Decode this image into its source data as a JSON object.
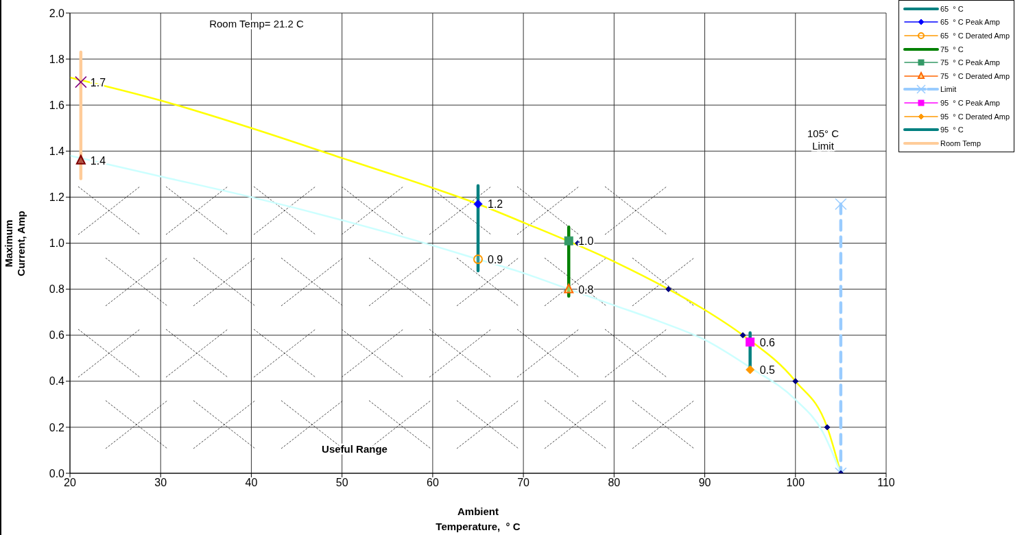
{
  "chart_data": {
    "type": "line",
    "xlabel": "Ambient Temperature,  ° C",
    "ylabel": "Maximum Current, Amp",
    "xlim": [
      20,
      110
    ],
    "xticks": [
      20,
      30,
      40,
      50,
      60,
      70,
      80,
      90,
      100,
      110
    ],
    "ylim": [
      0,
      2
    ],
    "yticks": [
      {
        "value": 0,
        "label": "0.0"
      },
      0.2,
      0.4,
      0.6,
      0.8,
      {
        "value": 1,
        "label": "1.0"
      },
      1.2,
      1.4,
      1.6,
      1.8,
      {
        "value": 2,
        "label": "2.0"
      }
    ],
    "grid": true,
    "legend": "top right",
    "annotations": [
      "Room Temp= 21.2 C",
      "105° C\nLimit",
      "Useful Range"
    ],
    "series": [
      {
        "color": "#ffff00",
        "marker": "none",
        "x": [
          20,
          30,
          40,
          50,
          60,
          65,
          70,
          80,
          86,
          90,
          94.2,
          100,
          103.5,
          105
        ],
        "values": [
          1.72,
          1.62,
          1.5,
          1.37,
          1.24,
          1.17,
          1.09,
          0.92,
          0.8,
          0.71,
          0.6,
          0.4,
          0.2,
          0
        ]
      },
      {
        "color": "#ccffff",
        "marker": "none",
        "x": [
          20,
          30,
          40,
          50,
          60,
          65,
          70,
          75,
          80,
          85,
          90,
          95,
          100,
          103,
          105
        ],
        "values": [
          1.38,
          1.29,
          1.2,
          1.1,
          0.99,
          0.93,
          0.87,
          0.8,
          0.73,
          0.66,
          0.58,
          0.46,
          0.32,
          0.18,
          0
        ]
      },
      {
        "name": "65  ° C",
        "color": "#008080",
        "marker": "none",
        "x": [
          65,
          65
        ],
        "values": [
          1.25,
          0.88
        ]
      },
      {
        "type": "scatter",
        "name": "65  ° C Peak Amp",
        "color": "#0000ff",
        "marker": "diamond",
        "x": [
          65
        ],
        "values": [
          1.17
        ],
        "value_labels": [
          "1.2"
        ]
      },
      {
        "type": "scatter",
        "name": "65  ° C Derated Amp",
        "color": "#ff9900",
        "marker": "circle",
        "x": [
          65
        ],
        "values": [
          0.93
        ],
        "value_labels": [
          "0.9"
        ]
      },
      {
        "name": "75  ° C",
        "color": "#008000",
        "marker": "none",
        "x": [
          75,
          75
        ],
        "values": [
          1.07,
          0.77
        ]
      },
      {
        "type": "scatter",
        "name": "75  ° C Peak Amp",
        "color": "#339966",
        "marker": "square",
        "x": [
          75
        ],
        "values": [
          1.01
        ],
        "value_labels": [
          "1.0"
        ]
      },
      {
        "type": "scatter",
        "name": "75  ° C Derated Amp",
        "color": "#ff6600",
        "marker": "triangle",
        "x": [
          75
        ],
        "values": [
          0.8
        ],
        "value_labels": [
          "0.8"
        ]
      },
      {
        "name": "Limit",
        "color": "#99ccff",
        "marker": "cross",
        "line_style": "dashed",
        "x": [
          105,
          105
        ],
        "values": [
          1.17,
          0
        ]
      },
      {
        "type": "scatter",
        "name": "95  ° C Peak Amp",
        "color": "#ff00ff",
        "marker": "square",
        "x": [
          95
        ],
        "values": [
          0.57
        ],
        "value_labels": [
          "0.6"
        ]
      },
      {
        "type": "scatter",
        "name": "95  ° C Derated Amp",
        "color": "#ff9900",
        "marker": "diamond",
        "x": [
          95
        ],
        "values": [
          0.45
        ],
        "value_labels": [
          "0.5"
        ]
      },
      {
        "name": "95  ° C",
        "color": "#008080",
        "marker": "none",
        "x": [
          95,
          95
        ],
        "values": [
          0.61,
          0.45
        ]
      },
      {
        "name": "Room Temp",
        "color": "#ffcc99",
        "marker": "none",
        "x": [
          21.2,
          21.2
        ],
        "values": [
          1.83,
          1.28
        ]
      },
      {
        "type": "scatter",
        "color": "#800080",
        "marker": "cross",
        "x": [
          21.2
        ],
        "values": [
          1.7
        ],
        "value_labels": [
          "1.7"
        ]
      },
      {
        "type": "scatter",
        "color": "#800000",
        "marker": "triangle",
        "x": [
          21.2
        ],
        "values": [
          1.36
        ],
        "value_labels": [
          "1.4"
        ]
      },
      {
        "type": "scatter",
        "color": "#000080",
        "marker": "diamond",
        "x": [
          76,
          86,
          94.2,
          100,
          103.5,
          105
        ],
        "values": [
          1.0,
          0.8,
          0.6,
          0.4,
          0.2,
          0
        ]
      }
    ]
  }
}
